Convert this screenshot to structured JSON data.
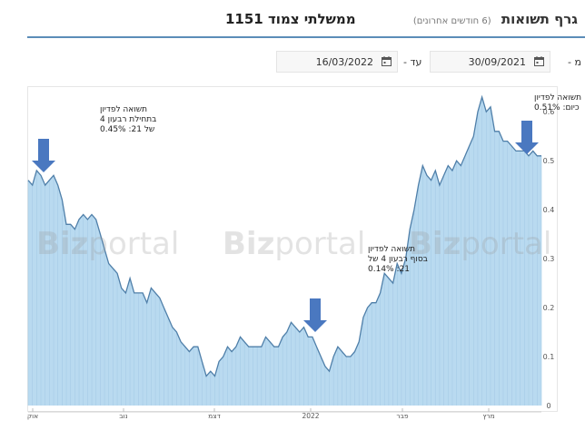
{
  "header": {
    "title": "גרף תשואות",
    "subtitle": "(6 חודשים אחרונים)",
    "instrument": "ממשלתי צמוד 1151"
  },
  "date_range": {
    "from_label": "מ -",
    "from_value": "30/09/2021",
    "to_label": "עד -",
    "to_value": "16/03/2022",
    "calendar_icon": "calendar-icon"
  },
  "watermark": {
    "text_bold": "Biz",
    "text_light": "portal"
  },
  "colors": {
    "area_fill": "#b9daf0",
    "area_stroke": "#4f7fa9",
    "arrow": "#4a78c0",
    "accent_rule": "#5b8db8"
  },
  "annotations": [
    {
      "lines": [
        "תשואה לפדיון",
        "בתחילת רבעון 4",
        "של 21:  0.45%"
      ]
    },
    {
      "lines": [
        "תשואה לפדיון",
        "בסוף רבעון 4 של",
        "21:  0.14%"
      ]
    },
    {
      "lines": [
        "תשואה לפדיון",
        "כיום:  0.51%"
      ]
    }
  ],
  "chart_data": {
    "type": "area",
    "title": "",
    "xlabel": "",
    "ylabel": "",
    "ylim": [
      0,
      0.63
    ],
    "y_ticks": [
      "0",
      "0.1",
      "0.2",
      "0.3",
      "0.4",
      "0.5",
      "0.6"
    ],
    "x_ticks": [
      "אוק",
      "נוב",
      "דצמ",
      "2022",
      "פבר",
      "מרץ"
    ],
    "grid": false,
    "y_axis_side": "right",
    "values": [
      0.46,
      0.45,
      0.48,
      0.47,
      0.45,
      0.46,
      0.47,
      0.45,
      0.42,
      0.37,
      0.37,
      0.36,
      0.38,
      0.39,
      0.38,
      0.39,
      0.38,
      0.35,
      0.32,
      0.29,
      0.28,
      0.27,
      0.24,
      0.23,
      0.26,
      0.23,
      0.23,
      0.23,
      0.21,
      0.24,
      0.23,
      0.22,
      0.2,
      0.18,
      0.16,
      0.15,
      0.13,
      0.12,
      0.11,
      0.12,
      0.12,
      0.09,
      0.06,
      0.07,
      0.06,
      0.09,
      0.1,
      0.12,
      0.11,
      0.12,
      0.14,
      0.13,
      0.12,
      0.12,
      0.12,
      0.12,
      0.14,
      0.13,
      0.12,
      0.12,
      0.14,
      0.15,
      0.17,
      0.16,
      0.15,
      0.16,
      0.14,
      0.14,
      0.12,
      0.1,
      0.08,
      0.07,
      0.1,
      0.12,
      0.11,
      0.1,
      0.1,
      0.11,
      0.13,
      0.18,
      0.2,
      0.21,
      0.21,
      0.23,
      0.27,
      0.26,
      0.25,
      0.29,
      0.27,
      0.3,
      0.36,
      0.4,
      0.45,
      0.49,
      0.47,
      0.46,
      0.48,
      0.45,
      0.47,
      0.49,
      0.48,
      0.5,
      0.49,
      0.51,
      0.53,
      0.55,
      0.6,
      0.63,
      0.6,
      0.61,
      0.56,
      0.56,
      0.54,
      0.54,
      0.53,
      0.52,
      0.52,
      0.52,
      0.51,
      0.52,
      0.51,
      0.51
    ]
  }
}
